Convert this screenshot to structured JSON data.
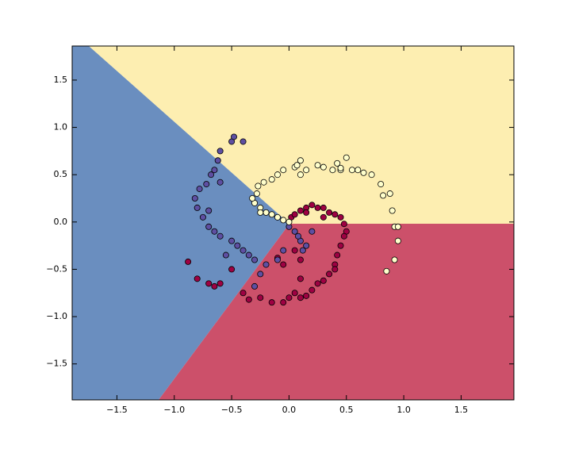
{
  "chart_data": {
    "type": "scatter",
    "xlim": [
      -1.89,
      1.96
    ],
    "ylim": [
      -1.88,
      1.86
    ],
    "xticks": [
      {
        "value": -1.5,
        "label": "−1.5"
      },
      {
        "value": -1.0,
        "label": "−1.0"
      },
      {
        "value": -0.5,
        "label": "−0.5"
      },
      {
        "value": 0,
        "label": "0.0"
      },
      0.5,
      {
        "value": 1.0,
        "label": "1.0"
      },
      1.5
    ],
    "yticks": [
      {
        "value": -1.5,
        "label": "−1.5"
      },
      {
        "value": -1.0,
        "label": "−1.0"
      },
      {
        "value": -0.5,
        "label": "−0.5"
      },
      {
        "value": 0,
        "label": "0.0"
      },
      0.5,
      {
        "value": 1.0,
        "label": "1.0"
      },
      1.5
    ],
    "series": [
      {
        "color": "#9e0142",
        "x": [
          0.02,
          0.05,
          0.1,
          0.15,
          0.2,
          0.25,
          0.3,
          0.35,
          0.4,
          0.45,
          0.48,
          0.5,
          0.48,
          0.45,
          0.42,
          0.4,
          0.35,
          0.3,
          0.25,
          0.2,
          0.15,
          0.1,
          0.05,
          0.0,
          -0.05,
          -0.15,
          -0.25,
          -0.35,
          -0.4,
          -0.5,
          -0.6,
          -0.65,
          -0.7,
          -0.8,
          -0.88,
          0.1,
          0.05,
          -0.05,
          -0.1,
          0.15,
          0.3,
          0.4,
          0.1
        ],
        "values": [
          0.05,
          0.08,
          0.12,
          0.15,
          0.18,
          0.15,
          0.05,
          0.1,
          0.08,
          0.05,
          -0.02,
          -0.1,
          -0.15,
          -0.25,
          -0.35,
          -0.45,
          -0.55,
          -0.62,
          -0.65,
          -0.72,
          -0.78,
          -0.8,
          -0.75,
          -0.8,
          -0.85,
          -0.85,
          -0.8,
          -0.82,
          -0.75,
          -0.5,
          -0.65,
          -0.68,
          -0.65,
          -0.6,
          -0.42,
          -0.4,
          -0.3,
          -0.45,
          -0.38,
          0.1,
          0.15,
          -0.5,
          -0.6
        ]
      },
      {
        "color": "#5e4fa2",
        "x": [
          0.0,
          0.05,
          0.1,
          0.12,
          0.08,
          -0.05,
          -0.1,
          -0.2,
          -0.3,
          -0.35,
          -0.4,
          -0.45,
          -0.5,
          -0.6,
          -0.65,
          -0.7,
          -0.75,
          -0.8,
          -0.82,
          -0.78,
          -0.72,
          -0.68,
          -0.65,
          -0.62,
          -0.6,
          -0.5,
          -0.48,
          -0.4,
          -0.55,
          -0.6,
          -0.7,
          0.15,
          0.2,
          -0.25,
          -0.3
        ],
        "values": [
          -0.05,
          -0.1,
          -0.2,
          -0.3,
          -0.15,
          -0.3,
          -0.4,
          -0.45,
          -0.4,
          -0.35,
          -0.3,
          -0.25,
          -0.2,
          -0.15,
          -0.1,
          -0.05,
          0.05,
          0.15,
          0.25,
          0.35,
          0.4,
          0.5,
          0.55,
          0.65,
          0.75,
          0.85,
          0.9,
          0.85,
          -0.35,
          0.42,
          0.12,
          -0.25,
          -0.1,
          -0.55,
          -0.68
        ]
      },
      {
        "color": "#ffffcc",
        "x": [
          0.0,
          -0.05,
          -0.1,
          -0.15,
          -0.2,
          -0.25,
          -0.3,
          -0.32,
          -0.28,
          -0.27,
          -0.22,
          -0.15,
          -0.1,
          -0.05,
          0.05,
          0.1,
          0.15,
          0.25,
          0.3,
          0.38,
          0.42,
          0.5,
          0.45,
          0.55,
          0.6,
          0.65,
          0.72,
          0.8,
          0.82,
          0.88,
          0.9,
          0.92,
          0.95,
          0.95,
          0.92,
          0.85,
          0.07,
          0.1,
          0.45,
          -0.25
        ],
        "values": [
          0.0,
          0.02,
          0.05,
          0.08,
          0.1,
          0.15,
          0.2,
          0.25,
          0.3,
          0.38,
          0.42,
          0.45,
          0.5,
          0.55,
          0.58,
          0.65,
          0.55,
          0.6,
          0.58,
          0.55,
          0.62,
          0.68,
          0.55,
          0.55,
          0.55,
          0.52,
          0.5,
          0.4,
          0.28,
          0.3,
          0.12,
          -0.05,
          -0.05,
          -0.2,
          -0.4,
          -0.52,
          0.6,
          0.5,
          0.57,
          0.1
        ]
      }
    ]
  }
}
